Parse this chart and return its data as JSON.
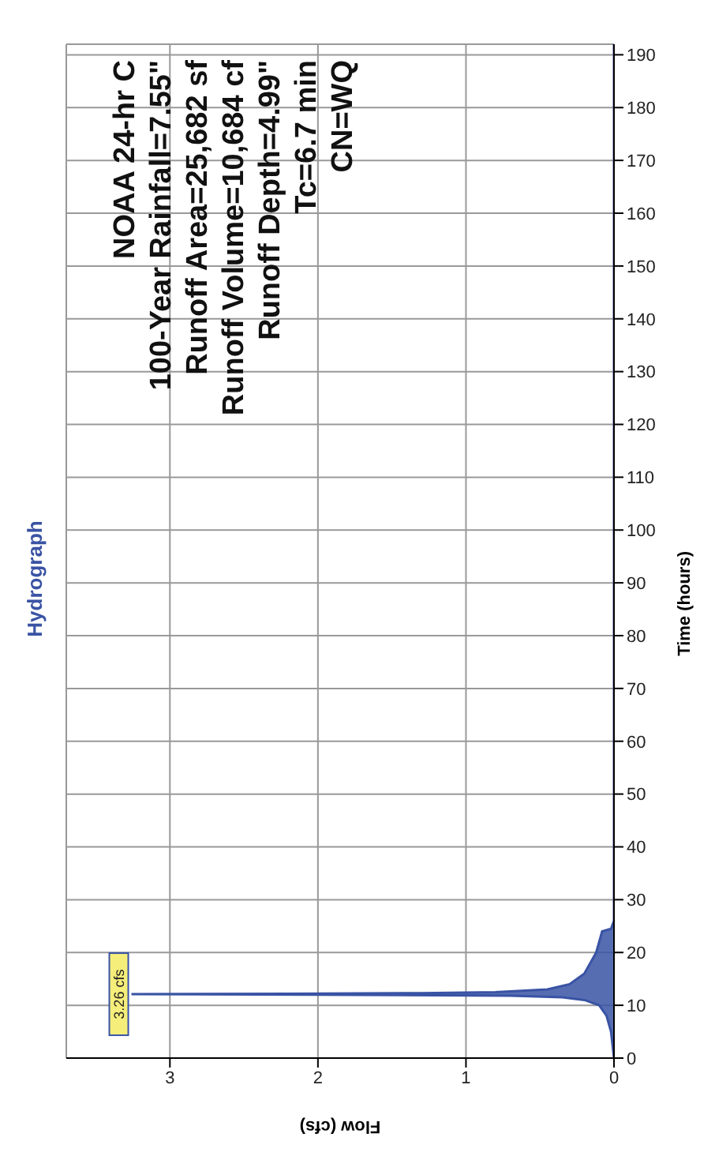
{
  "chart_data": {
    "type": "area",
    "orientation": "horizontal",
    "title": "Hydrograph",
    "xlabel": "Flow (cfs)",
    "ylabel": "Time (hours)",
    "x": [
      0,
      5,
      8,
      10,
      11,
      11.5,
      11.8,
      12.0,
      12.1,
      12.2,
      12.3,
      12.5,
      13,
      14,
      16,
      20,
      24,
      24.5,
      26,
      192
    ],
    "series": [
      {
        "color": "#3953a4",
        "values": [
          0,
          0.02,
          0.05,
          0.1,
          0.2,
          0.35,
          0.7,
          2.0,
          3.26,
          2.2,
          1.3,
          0.8,
          0.45,
          0.3,
          0.2,
          0.12,
          0.08,
          0.02,
          0,
          0
        ]
      }
    ],
    "ylim": [
      0,
      192
    ],
    "yticks": [
      0,
      10,
      20,
      30,
      40,
      50,
      60,
      70,
      80,
      90,
      100,
      110,
      120,
      130,
      140,
      150,
      160,
      170,
      180,
      190
    ],
    "xlim": [
      3.7,
      0
    ],
    "xticks": [
      0,
      1,
      2,
      3
    ],
    "grid": true,
    "annotations": [
      {
        "text": "3.26 cfs",
        "x": 3.26,
        "y": 12.1
      },
      "NOAA 24-hr C",
      "100-Year Rainfall=7.55\"",
      "Runoff Area=25,682 sf",
      "Runoff Volume=10,684 cf",
      "Runoff Depth=4.99\"",
      "Tc=6.7 min",
      "CN=WQ"
    ]
  }
}
